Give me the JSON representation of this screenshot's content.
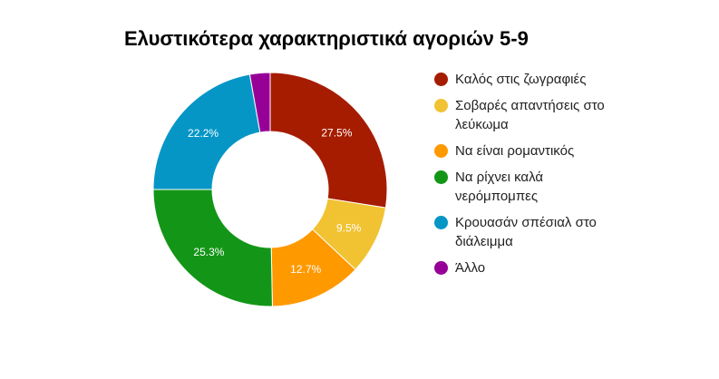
{
  "chart_data": {
    "type": "pie",
    "title": "Ελυστικότερα χαρακτηριστικά αγοριών 5-9",
    "donut": true,
    "legend_position": "right",
    "slices": [
      {
        "label": "Καλός στις ζωγραφιές",
        "value": 27.5,
        "value_label": "27.5%",
        "color": "#a61c00"
      },
      {
        "label": "Σοβαρές απαντήσεις στο λεύκωμα",
        "value": 9.5,
        "value_label": "9.5%",
        "color": "#f1c232"
      },
      {
        "label": "Να είναι ρομαντικός",
        "value": 12.7,
        "value_label": "12.7%",
        "color": "#ff9900"
      },
      {
        "label": "Να ρίχνει καλά νερόμπομπες",
        "value": 25.3,
        "value_label": "25.3%",
        "color": "#139617"
      },
      {
        "label": "Κρουασάν σπέσιαλ στο διάλειμμα",
        "value": 22.2,
        "value_label": "22.2%",
        "color": "#0596c6"
      },
      {
        "label": "Άλλο",
        "value": 2.8,
        "value_label": "",
        "color": "#970097"
      }
    ]
  }
}
